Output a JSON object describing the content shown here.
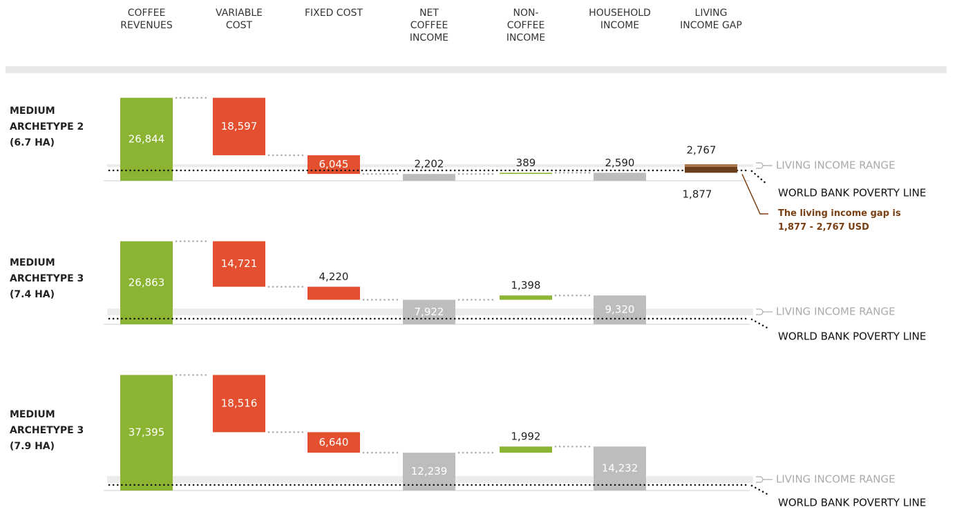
{
  "columns": [
    "COFFEE REVENUES",
    "VARIABLE COST",
    "FIXED COST",
    "NET COFFEE INCOME",
    "NON-COFFEE INCOME",
    "HOUSEHOLD INCOME",
    "LIVING INCOME GAP"
  ],
  "chart_data": [
    {
      "type": "waterfall",
      "title": "MEDIUM ARCHETYPE 2 (6.7 HA)",
      "values": [
        26844,
        18597,
        6045,
        2202,
        389,
        2590
      ],
      "value_labels": [
        "26,844",
        "18,597",
        "6,045",
        "2,202",
        "389",
        "2,590"
      ],
      "colors": [
        "#8ab431",
        "#e4502f",
        "#e4502f",
        "#bdbdbd",
        "#8ab431",
        "#bdbdbd"
      ],
      "gap": [
        1877,
        2767
      ],
      "gap_labels": [
        "1,877",
        "2,767"
      ],
      "gap_colors": [
        "#6b3f1c",
        "#a9774a"
      ],
      "living_income_range": [
        4470,
        5360
      ],
      "poverty_line": 3350,
      "range_label": "LIVING INCOME RANGE",
      "poverty_label": "WORLD BANK POVERTY LINE",
      "annotation": "The living income gap is 1,877 - 2,767 USD"
    },
    {
      "type": "waterfall",
      "title": "MEDIUM ARCHETYPE 3 (7.4 HA)",
      "values": [
        26863,
        14721,
        4220,
        7922,
        1398,
        9320
      ],
      "value_labels": [
        "26,863",
        "14,721",
        "4,220",
        "7,922",
        "1,398",
        "9,320"
      ],
      "colors": [
        "#8ab431",
        "#e4502f",
        "#e4502f",
        "#bdbdbd",
        "#8ab431",
        "#bdbdbd"
      ],
      "living_income_range": [
        2900,
        5100
      ],
      "poverty_line": 1800,
      "range_label": "LIVING INCOME RANGE",
      "poverty_label": "WORLD BANK POVERTY LINE"
    },
    {
      "type": "waterfall",
      "title": "MEDIUM ARCHETYPE 3 (7.9 HA)",
      "values": [
        37395,
        18516,
        6640,
        12239,
        1992,
        14232
      ],
      "value_labels": [
        "37,395",
        "18,516",
        "6,640",
        "12,239",
        "1,992",
        "14,232"
      ],
      "colors": [
        "#8ab431",
        "#e4502f",
        "#e4502f",
        "#bdbdbd",
        "#8ab431",
        "#bdbdbd"
      ],
      "living_income_range": [
        2450,
        4700
      ],
      "poverty_line": 1800,
      "range_label": "LIVING INCOME RANGE",
      "poverty_label": "WORLD BANK POVERTY LINE"
    }
  ]
}
